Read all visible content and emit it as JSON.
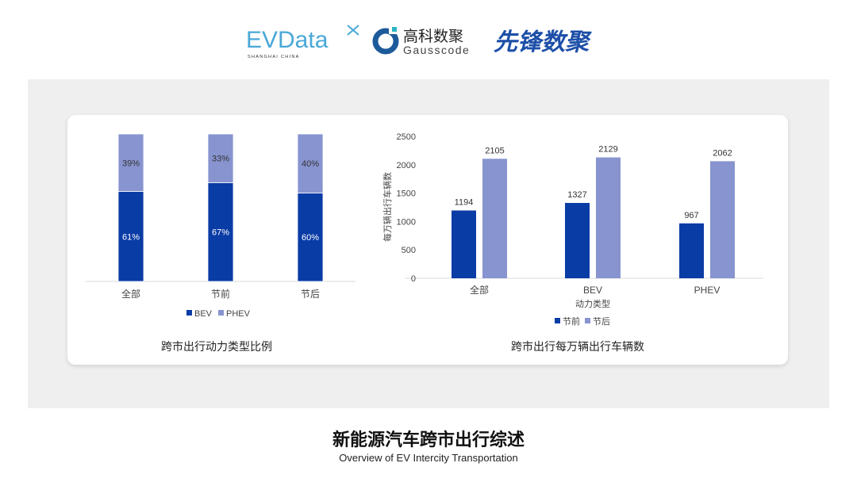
{
  "logos": {
    "evdata": {
      "text": "EVData",
      "subtitle": "SHANGHAI CHINA"
    },
    "gausscode": {
      "cn": "高科数聚",
      "en": "Gausscode"
    },
    "xianfeng": {
      "text": "先锋数聚"
    }
  },
  "colors": {
    "before": "#0a3ca6",
    "after": "#8794d0",
    "bev": "#0a3ca6",
    "phev": "#8794d0",
    "panel": "#efefef"
  },
  "chart_data": [
    {
      "type": "bar",
      "stacked": true,
      "percent": true,
      "title": "跨市出行动力类型比例",
      "categories": [
        "全部",
        "节前",
        "节后"
      ],
      "series": [
        {
          "name": "BEV",
          "values": [
            61,
            67,
            60
          ],
          "labels": [
            "61%",
            "67%",
            "60%"
          ]
        },
        {
          "name": "PHEV",
          "values": [
            39,
            33,
            40
          ],
          "labels": [
            "39%",
            "33%",
            "40%"
          ]
        }
      ],
      "legend": "bottom",
      "ylim": [
        0,
        100
      ],
      "grid": false
    },
    {
      "type": "bar",
      "title": "跨市出行每万辆出行车辆数",
      "xlabel": "动力类型",
      "ylabel": "每万辆出行车辆数",
      "categories": [
        "全部",
        "BEV",
        "PHEV"
      ],
      "series": [
        {
          "name": "节前",
          "values": [
            1194,
            1327,
            967
          ]
        },
        {
          "name": "节后",
          "values": [
            2105,
            2129,
            2062
          ]
        }
      ],
      "yticks": [
        "0",
        "500",
        "1000",
        "1500",
        "2000",
        "2500"
      ],
      "ylim": [
        0,
        2500
      ],
      "legend": "bottom",
      "grid": false
    }
  ],
  "footer": {
    "title": "新能源汽车跨市出行综述",
    "subtitle": "Overview of EV Intercity Transportation"
  }
}
